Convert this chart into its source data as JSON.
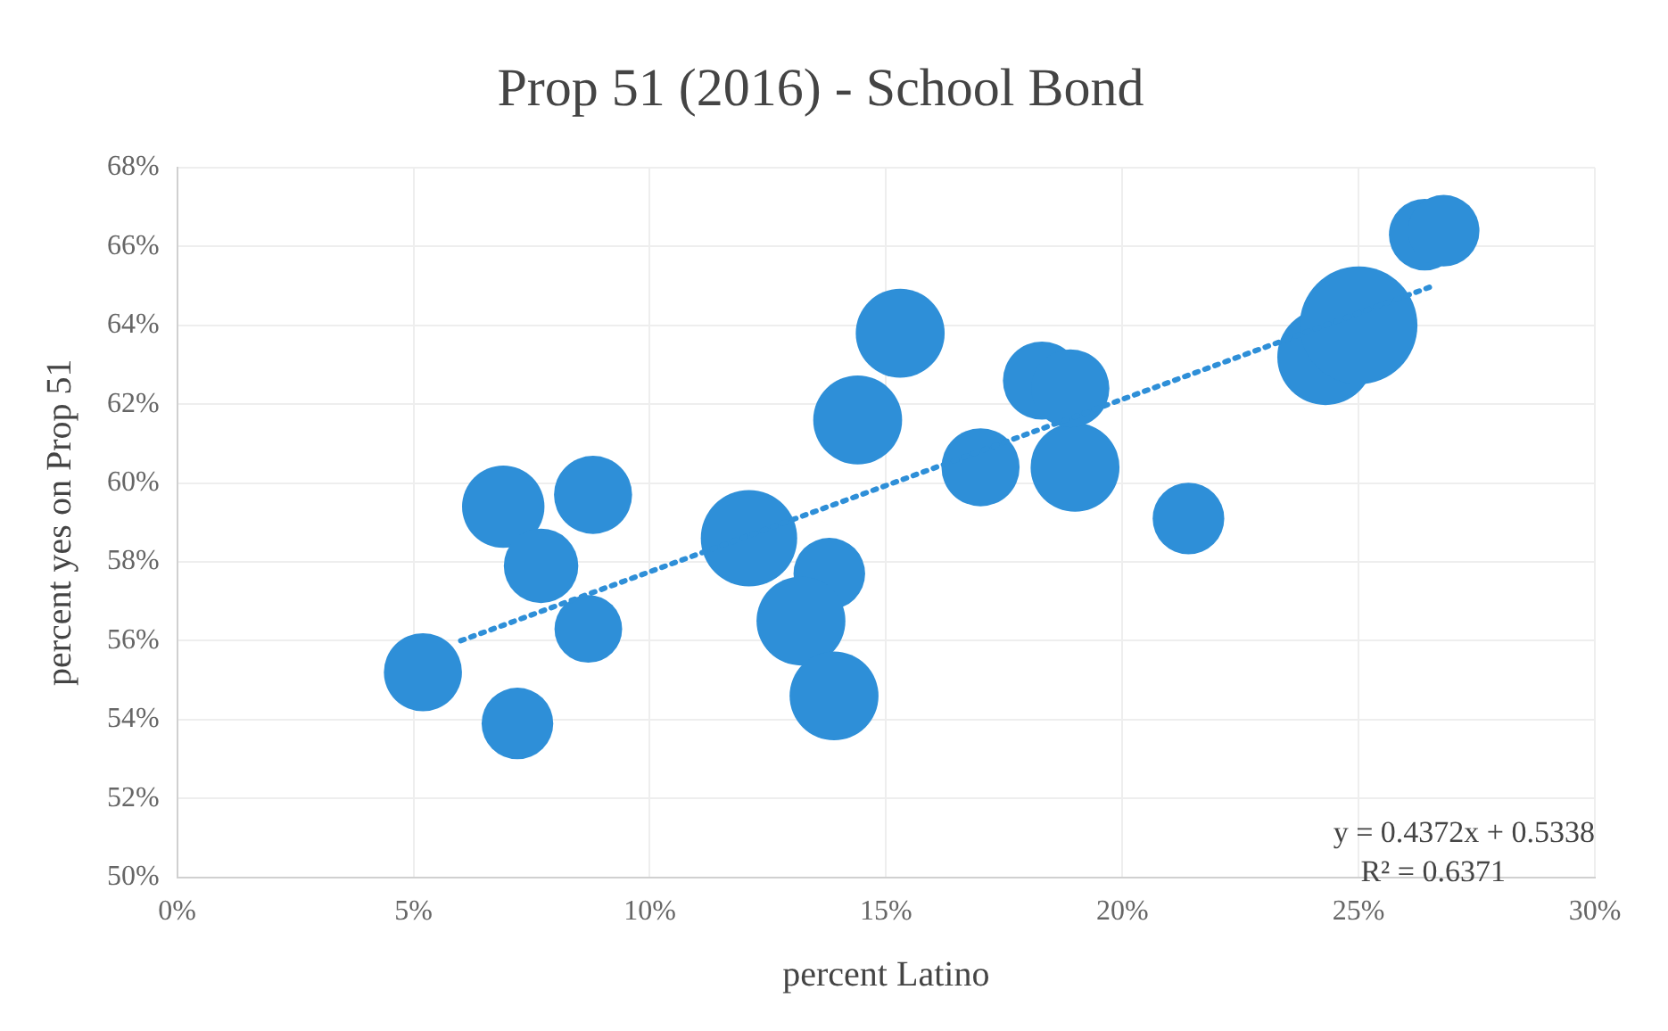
{
  "chart_data": {
    "type": "bubble",
    "title": "Prop 51 (2016) - School Bond",
    "xlabel": "percent Latino",
    "ylabel": "percent yes on Prop 51",
    "xlim": [
      0,
      30
    ],
    "xticks": [
      {
        "value": 0,
        "label": "0%"
      },
      {
        "value": 5,
        "label": "5%"
      },
      {
        "value": 10,
        "label": "10%"
      },
      {
        "value": 15,
        "label": "15%"
      },
      {
        "value": 20,
        "label": "20%"
      },
      {
        "value": 25,
        "label": "25%"
      },
      {
        "value": 30,
        "label": "30%"
      }
    ],
    "ylim": [
      50,
      68
    ],
    "yticks": [
      {
        "value": 50,
        "label": "50%"
      },
      {
        "value": 52,
        "label": "52%"
      },
      {
        "value": 54,
        "label": "54%"
      },
      {
        "value": 56,
        "label": "56%"
      },
      {
        "value": 58,
        "label": "58%"
      },
      {
        "value": 60,
        "label": "60%"
      },
      {
        "value": 62,
        "label": "62%"
      },
      {
        "value": 64,
        "label": "64%"
      },
      {
        "value": 66,
        "label": "66%"
      },
      {
        "value": 68,
        "label": "68%"
      }
    ],
    "grid": true,
    "legend": false,
    "series": [
      {
        "type": "bubble",
        "color": "#2e8fd8",
        "x": [
          5.2,
          7.2,
          6.9,
          7.7,
          8.8,
          8.7,
          12.1,
          13.8,
          13.2,
          13.9,
          14.4,
          15.3,
          17.0,
          19.0,
          18.3,
          18.9,
          21.4,
          24.3,
          25.0,
          26.4,
          26.8
        ],
        "values": [
          55.2,
          53.9,
          59.4,
          57.9,
          59.7,
          56.3,
          58.6,
          57.7,
          56.5,
          54.6,
          61.6,
          63.8,
          60.4,
          60.4,
          62.6,
          62.4,
          59.1,
          63.2,
          64.0,
          66.3,
          66.4
        ],
        "sizes": [
          0.44,
          0.37,
          0.49,
          0.4,
          0.44,
          0.33,
          0.67,
          0.37,
          0.57,
          0.57,
          0.57,
          0.57,
          0.44,
          0.57,
          0.44,
          0.44,
          0.37,
          0.67,
          1,
          0.37,
          0.37
        ]
      },
      {
        "type": "line",
        "color": "#2e8fd8",
        "line_style": "dotted",
        "marker": "none",
        "x": [
          6.0,
          26.6
        ],
        "values": [
          56.0,
          65.01
        ]
      }
    ],
    "annotations": [
      "y = 0.4372x + 0.5338",
      "R² = 0.6371"
    ]
  }
}
